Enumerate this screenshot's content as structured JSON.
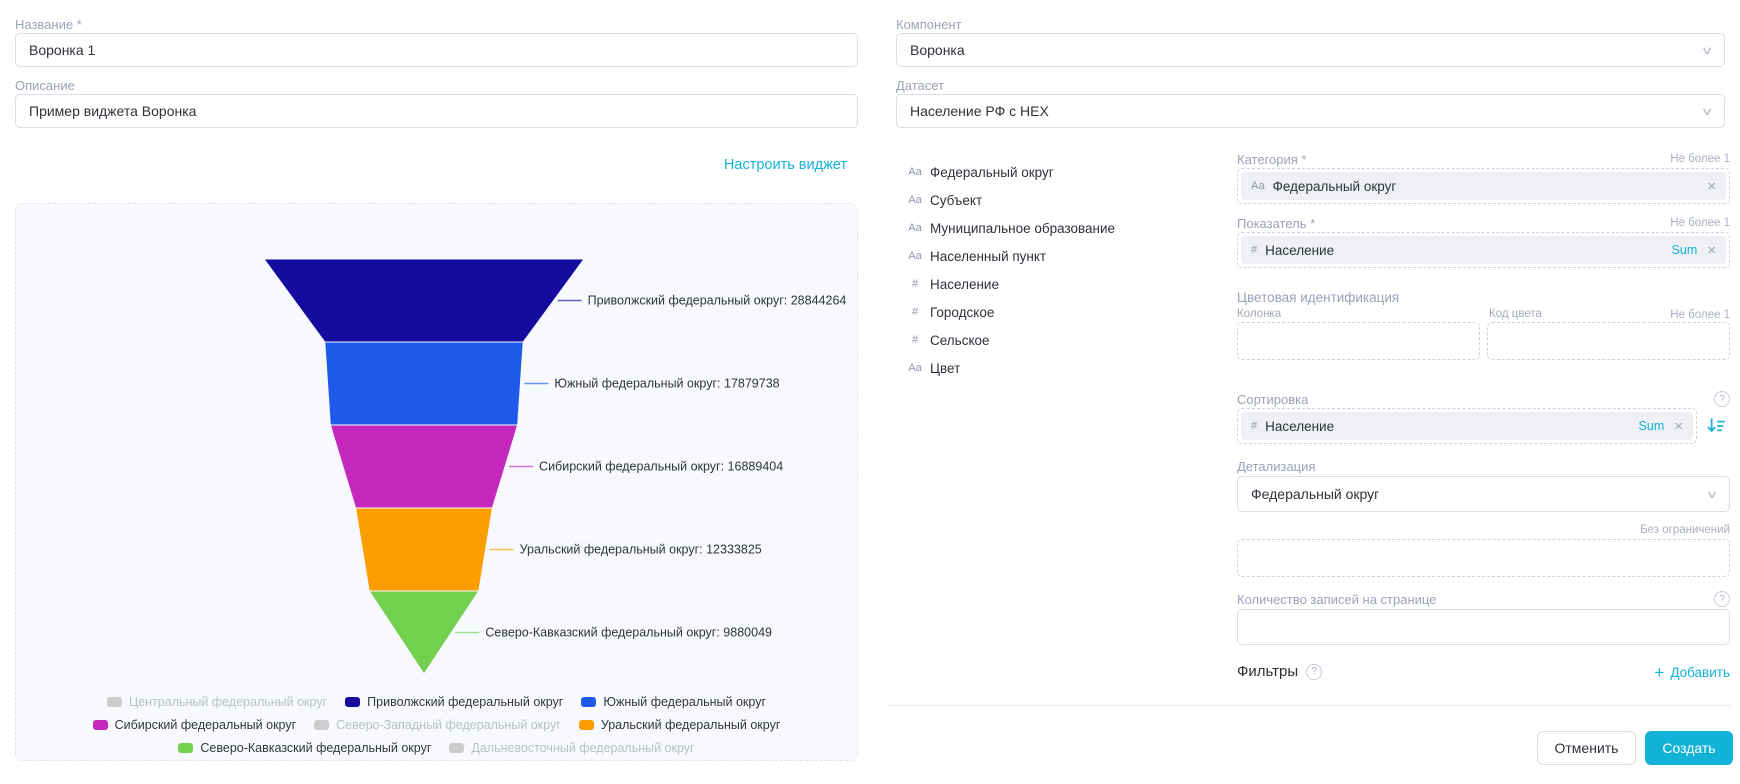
{
  "accent": "#13b2d6",
  "left": {
    "name_field": {
      "label": "Название *",
      "value": "Воронка 1"
    },
    "description_field": {
      "label": "Описание",
      "value": "Пример виджета Воронка"
    },
    "configure_link": "Настроить виджет"
  },
  "right": {
    "component_select": {
      "label": "Компонент",
      "value": "Воронка"
    },
    "dataset_select": {
      "label": "Датасет",
      "value": "Население РФ с HEX"
    },
    "dataset_fields": [
      {
        "icon": "Аа",
        "name": "Федеральный округ"
      },
      {
        "icon": "Аа",
        "name": "Субъект"
      },
      {
        "icon": "Аа",
        "name": "Муниципальное образование"
      },
      {
        "icon": "Аа",
        "name": "Населенный пункт"
      },
      {
        "icon": "#",
        "name": "Население"
      },
      {
        "icon": "#",
        "name": "Городское"
      },
      {
        "icon": "#",
        "name": "Сельское"
      },
      {
        "icon": "Аа",
        "name": "Цвет"
      }
    ],
    "category": {
      "label": "Категория *",
      "limit": "Не более 1",
      "chip": {
        "icon": "Аа",
        "name": "Федеральный округ",
        "remove": "×"
      }
    },
    "measure": {
      "label": "Показатель *",
      "limit": "Не более 1",
      "chip": {
        "icon": "#",
        "name": "Население",
        "aggregation": "Sum",
        "remove": "×"
      }
    },
    "color_identification": {
      "label": "Цветовая идентификация",
      "column_label": "Колонка",
      "color_code_label": "Код цвета",
      "limit": "Не более 1"
    },
    "sorting": {
      "label": "Сортировка",
      "chip": {
        "icon": "#",
        "name": "Население",
        "aggregation": "Sum",
        "remove": "×"
      }
    },
    "detail_select": {
      "label": "Детализация",
      "value": "Федеральный округ"
    },
    "limit_hint": "Без ограничений",
    "records_per_page": {
      "label": "Количество записей на странице",
      "value": ""
    },
    "filters": {
      "label": "Фильтры",
      "add_label": "Добавить"
    },
    "footer": {
      "cancel_label": "Отменить",
      "create_label": "Создать"
    }
  },
  "chart_data": {
    "type": "funnel",
    "title": "",
    "value_label_format": "{name}: {value}",
    "series": [
      {
        "name": "Приволжский федеральный округ",
        "value": 28844264,
        "color": "#140b9e"
      },
      {
        "name": "Южный федеральный округ",
        "value": 17879738,
        "color": "#1f5bea"
      },
      {
        "name": "Сибирский федеральный округ",
        "value": 16889404,
        "color": "#c428bc"
      },
      {
        "name": "Уральский федеральный округ",
        "value": 12333825,
        "color": "#fc9e00"
      },
      {
        "name": "Северо-Кавказский федеральный округ",
        "value": 9880049,
        "color": "#72d04f"
      }
    ],
    "legend": [
      {
        "name": "Центральный федеральный округ",
        "color": "#cccccc",
        "muted": true
      },
      {
        "name": "Приволжский федеральный округ",
        "color": "#140b9e",
        "muted": false
      },
      {
        "name": "Южный федеральный округ",
        "color": "#1f5bea",
        "muted": false
      },
      {
        "name": "Сибирский федеральный округ",
        "color": "#c428bc",
        "muted": false
      },
      {
        "name": "Северо-Западный федеральный округ",
        "color": "#cccccc",
        "muted": true
      },
      {
        "name": "Уральский федеральный округ",
        "color": "#fc9e00",
        "muted": false
      },
      {
        "name": "Северо-Кавказский федеральный округ",
        "color": "#72d04f",
        "muted": false
      },
      {
        "name": "Дальневосточный федеральный округ",
        "color": "#cccccc",
        "muted": true
      }
    ],
    "legend_position": "bottom",
    "muted_text_color": "#b9bfca"
  }
}
